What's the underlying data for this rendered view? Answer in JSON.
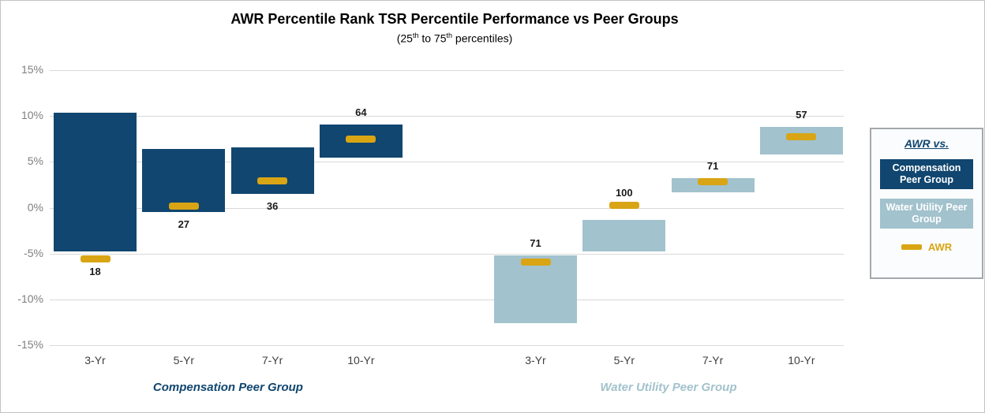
{
  "chart_data": {
    "type": "floating-bar",
    "title": "AWR Percentile Rank TSR Percentile Performance vs Peer Groups",
    "subtitle": "(25th to 75th percentiles)",
    "ylabel": "",
    "xlabel": "",
    "ylim": [
      -15,
      15
    ],
    "yticks": [
      15,
      10,
      5,
      0,
      -5,
      -10,
      -15
    ],
    "ytick_suffix": "%",
    "grid": true,
    "awr_marker_color": "#d9a514",
    "groups": [
      {
        "name": "Compensation Peer Group",
        "color": "#10466f",
        "bars": [
          {
            "label": "3-Yr",
            "p25": -4.8,
            "p75": 10.4,
            "awr_percentile": -5.6,
            "awr_rank": 18,
            "rank_label_position": "below"
          },
          {
            "label": "5-Yr",
            "p25": -0.5,
            "p75": 6.4,
            "awr_percentile": 0.2,
            "awr_rank": 27,
            "rank_label_position": "below"
          },
          {
            "label": "7-Yr",
            "p25": 1.5,
            "p75": 6.6,
            "awr_percentile": 2.9,
            "awr_rank": 36,
            "rank_label_position": "below"
          },
          {
            "label": "10-Yr",
            "p25": 5.5,
            "p75": 9.1,
            "awr_percentile": 7.5,
            "awr_rank": 64,
            "rank_label_position": "above"
          }
        ]
      },
      {
        "name": "Water Utility Peer Group",
        "color": "#a2c2cd",
        "bars": [
          {
            "label": "3-Yr",
            "p25": -12.6,
            "p75": -5.2,
            "awr_percentile": -5.9,
            "awr_rank": 71,
            "rank_label_position": "above"
          },
          {
            "label": "5-Yr",
            "p25": -4.8,
            "p75": -1.3,
            "awr_percentile": 0.3,
            "awr_rank": 100,
            "rank_label_position": "above"
          },
          {
            "label": "7-Yr",
            "p25": 1.7,
            "p75": 3.2,
            "awr_percentile": 2.8,
            "awr_rank": 71,
            "rank_label_position": "above"
          },
          {
            "label": "10-Yr",
            "p25": 5.8,
            "p75": 8.8,
            "awr_percentile": 7.7,
            "awr_rank": 57,
            "rank_label_position": "above"
          }
        ]
      }
    ],
    "legend": {
      "title": "AWR vs.",
      "title_color": "#10466f",
      "position": "right",
      "items": [
        {
          "label": "Compensation Peer Group",
          "color": "#10466f",
          "text_color": "#ffffff",
          "type": "box"
        },
        {
          "label": "Water Utility Peer Group",
          "color": "#a2c2cd",
          "text_color": "#ffffff",
          "type": "box"
        },
        {
          "label": "AWR",
          "color": "#d9a514",
          "type": "marker"
        }
      ]
    }
  },
  "subtitle_parts": {
    "p1": "(25",
    "s1": "th",
    "p2": " to 75",
    "s2": "th",
    "p3": " percentiles)"
  }
}
